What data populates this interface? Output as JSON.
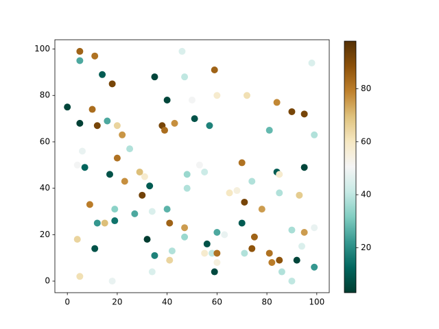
{
  "chart_data": {
    "type": "scatter",
    "x": [
      0,
      5,
      5,
      11,
      14,
      18,
      35,
      46,
      47,
      59,
      98,
      40,
      50,
      60,
      72,
      84,
      10,
      5,
      12,
      16,
      20,
      22,
      25,
      38,
      39,
      43,
      51,
      57,
      81,
      90,
      95,
      99,
      6,
      4,
      7,
      17,
      20,
      29,
      31,
      23,
      33,
      48,
      48,
      53,
      55,
      70,
      74,
      84,
      85,
      95,
      85,
      65,
      68,
      71,
      78,
      93,
      9,
      19,
      30,
      40,
      34,
      12,
      15,
      19,
      27,
      41,
      47,
      47,
      60,
      63,
      70,
      75,
      90,
      99,
      95,
      4,
      32,
      42,
      11,
      56,
      55,
      58,
      60,
      74,
      71,
      81,
      82,
      85,
      94,
      92,
      35,
      41,
      5,
      18,
      34,
      59,
      60,
      86,
      90,
      99
    ],
    "y": [
      75,
      99,
      95,
      97,
      89,
      85,
      88,
      99,
      88,
      91,
      94,
      78,
      78,
      80,
      80,
      77,
      74,
      68,
      67,
      69,
      67,
      63,
      57,
      67,
      65,
      68,
      70,
      67,
      65,
      73,
      72,
      63,
      56,
      50,
      49,
      46,
      53,
      47,
      45,
      43,
      41,
      46,
      40,
      50,
      47,
      51,
      43,
      47,
      46,
      49,
      38,
      38,
      39,
      34,
      31,
      37,
      33,
      31,
      37,
      31,
      30,
      25,
      25,
      26,
      29,
      25,
      23,
      19,
      21,
      20,
      25,
      19,
      22,
      23,
      21,
      18,
      18,
      13,
      14,
      16,
      12,
      12,
      12,
      14,
      12,
      12,
      8,
      9,
      15,
      9,
      11,
      9,
      2,
      0,
      4,
      4,
      8,
      4,
      0,
      6
    ],
    "c": [
      5,
      85,
      25,
      82,
      10,
      92,
      5,
      45,
      40,
      85,
      45,
      5,
      50,
      58,
      62,
      78,
      83,
      4,
      92,
      25,
      65,
      76,
      38,
      92,
      83,
      77,
      8,
      18,
      28,
      92,
      92,
      38,
      48,
      50,
      12,
      8,
      82,
      70,
      58,
      77,
      10,
      35,
      38,
      50,
      42,
      82,
      38,
      10,
      58,
      5,
      38,
      60,
      55,
      92,
      75,
      67,
      80,
      33,
      93,
      27,
      45,
      22,
      70,
      15,
      25,
      85,
      75,
      35,
      25,
      48,
      10,
      85,
      37,
      48,
      75,
      65,
      3,
      38,
      8,
      8,
      58,
      40,
      82,
      88,
      38,
      82,
      80,
      88,
      45,
      5,
      18,
      65,
      62,
      48,
      45,
      6,
      55,
      38,
      40,
      22
    ],
    "xlim": [
      -5,
      105
    ],
    "ylim": [
      -5,
      104
    ],
    "xticks": [
      0,
      20,
      40,
      60,
      80,
      100
    ],
    "yticks": [
      0,
      20,
      40,
      60,
      80,
      100
    ],
    "clim": [
      3,
      98
    ],
    "cticks": [
      20,
      40,
      60,
      80
    ],
    "colormap": [
      "#003c30",
      "#01665e",
      "#35978f",
      "#80cdc1",
      "#c7eae5",
      "#f5f5f5",
      "#f6e8c3",
      "#dfc27d",
      "#bf812d",
      "#8c510a",
      "#543005"
    ]
  }
}
